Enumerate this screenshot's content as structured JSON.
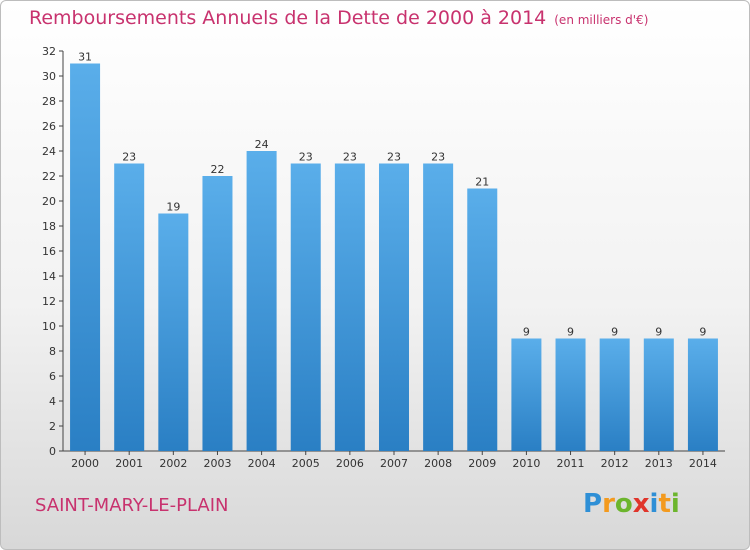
{
  "header": {
    "title": "Remboursements Annuels de la Dette de 2000 à 2014",
    "unit": "(en milliers d'€)"
  },
  "footer": {
    "commune": "SAINT-MARY-LE-PLAIN",
    "logo": [
      "P",
      "r",
      "o",
      "x",
      "i",
      "t",
      "i"
    ]
  },
  "colors": {
    "title": "#c8326e",
    "bar_top": "#5aaeea",
    "bar_bottom": "#2a7fc4"
  },
  "chart_data": {
    "type": "bar",
    "title": "Remboursements Annuels de la Dette de 2000 à 2014",
    "xlabel": "",
    "ylabel": "",
    "categories": [
      "2000",
      "2001",
      "2002",
      "2003",
      "2004",
      "2005",
      "2006",
      "2007",
      "2008",
      "2009",
      "2010",
      "2011",
      "2012",
      "2013",
      "2014"
    ],
    "values": [
      31,
      23,
      19,
      22,
      24,
      23,
      23,
      23,
      23,
      21,
      9,
      9,
      9,
      9,
      9
    ],
    "ylim": [
      0,
      32
    ],
    "yticks": [
      0,
      2,
      4,
      6,
      8,
      10,
      12,
      14,
      16,
      18,
      20,
      22,
      24,
      26,
      28,
      30,
      32
    ],
    "grid": false,
    "legend": "none"
  }
}
